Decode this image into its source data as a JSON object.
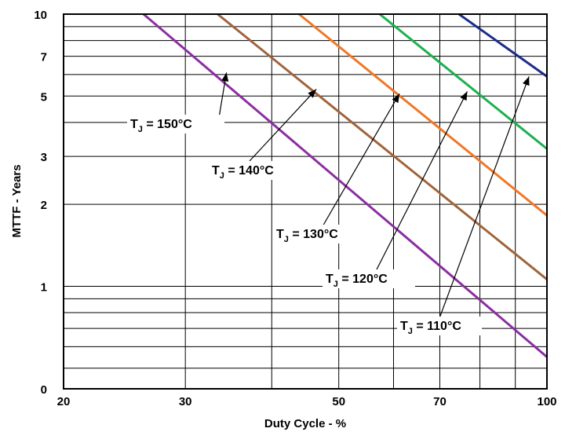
{
  "chart_data": {
    "type": "line",
    "xlabel": "Duty Cycle - %",
    "ylabel": "MTTF - Years",
    "x_scale": "log",
    "y_scale": "log",
    "xlim": [
      20,
      100
    ],
    "ylim": [
      0.42,
      10
    ],
    "x_ticks": [
      {
        "value": 20,
        "label": "20"
      },
      {
        "value": 30,
        "label": "30"
      },
      {
        "value": 50,
        "label": "50"
      },
      {
        "value": 70,
        "label": "70"
      },
      {
        "value": 100,
        "label": "100"
      }
    ],
    "y_ticks": [
      {
        "value": 0.42,
        "label": "0"
      },
      {
        "value": 1,
        "label": "1"
      },
      {
        "value": 2,
        "label": "2"
      },
      {
        "value": 3,
        "label": "3"
      },
      {
        "value": 5,
        "label": "5"
      },
      {
        "value": 7,
        "label": "7"
      },
      {
        "value": 10,
        "label": "10"
      }
    ],
    "grid": true,
    "series": [
      {
        "name": "T_J = 150°C",
        "color": "#8B2FA0",
        "x": [
          26.1,
          100
        ],
        "y": [
          10,
          0.55
        ],
        "label": {
          "main": "T",
          "sub": "J",
          "rest": " = 150°C"
        },
        "arrow_to": {
          "x": 34.4,
          "y": 6.1
        }
      },
      {
        "name": "T_J = 140°C",
        "color": "#A0643C",
        "x": [
          33.4,
          100
        ],
        "y": [
          10,
          1.06
        ],
        "label": {
          "main": "T",
          "sub": "J",
          "rest": " = 140°C"
        },
        "arrow_to": {
          "x": 46.4,
          "y": 5.3
        }
      },
      {
        "name": "T_J = 130°C",
        "color": "#F07828",
        "x": [
          43.8,
          100
        ],
        "y": [
          10,
          1.82
        ],
        "label": {
          "main": "T",
          "sub": "J",
          "rest": " = 130°C"
        },
        "arrow_to": {
          "x": 61.2,
          "y": 5.1
        }
      },
      {
        "name": "T_J = 120°C",
        "color": "#1EB050",
        "x": [
          57.3,
          100
        ],
        "y": [
          10,
          3.2
        ],
        "label": {
          "main": "T",
          "sub": "J",
          "rest": " = 120°C"
        },
        "arrow_to": {
          "x": 76.7,
          "y": 5.2
        }
      },
      {
        "name": "T_J = 110°C",
        "color": "#1E2D8C",
        "x": [
          74.6,
          100
        ],
        "y": [
          10,
          5.9
        ],
        "label": {
          "main": "T",
          "sub": "J",
          "rest": " = 110°C"
        },
        "arrow_to": {
          "x": 94.2,
          "y": 5.9
        }
      }
    ]
  }
}
